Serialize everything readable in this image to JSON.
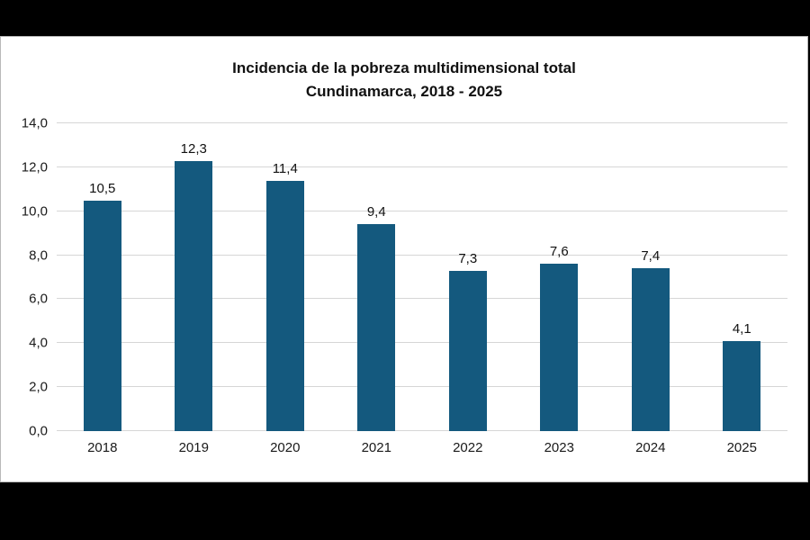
{
  "chart_data": {
    "type": "bar",
    "title_line1": "Incidencia de la pobreza multidimensional total",
    "title_line2": "Cundinamarca, 2018 - 2025",
    "categories": [
      "2018",
      "2019",
      "2020",
      "2021",
      "2022",
      "2023",
      "2024",
      "2025"
    ],
    "values": [
      10.5,
      12.3,
      11.4,
      9.4,
      7.3,
      7.6,
      7.4,
      4.1
    ],
    "value_labels": [
      "10,5",
      "12,3",
      "11,4",
      "9,4",
      "7,3",
      "7,6",
      "7,4",
      "4,1"
    ],
    "y_ticks": [
      0,
      2,
      4,
      6,
      8,
      10,
      12,
      14
    ],
    "y_tick_labels": [
      "0,0",
      "2,0",
      "4,0",
      "6,0",
      "8,0",
      "10,0",
      "12,0",
      "14,0"
    ],
    "ylim": [
      0,
      14
    ],
    "xlabel": "",
    "ylabel": "",
    "grid": true,
    "legend": "none",
    "bar_color": "#14597e",
    "gridline_color": "#d6d6d6",
    "background_color": "#ffffff",
    "frame_color": "#000000"
  }
}
